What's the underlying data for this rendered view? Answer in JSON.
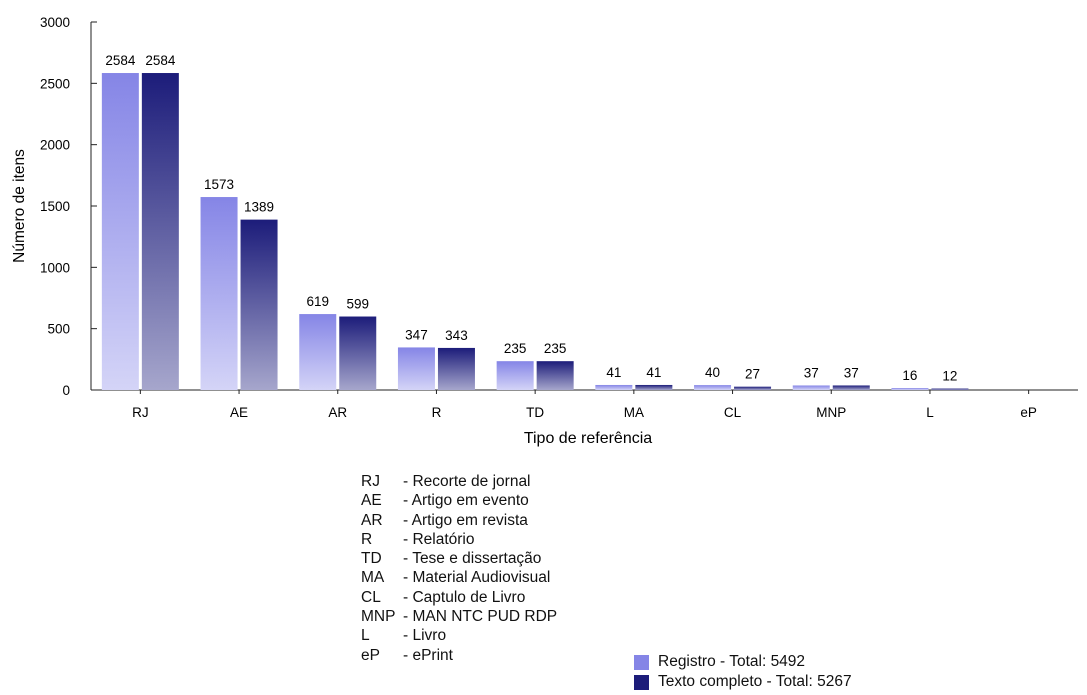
{
  "chart_data": {
    "type": "bar",
    "xlabel": "Tipo de referência",
    "ylabel": "Número de itens",
    "ylim": [
      0,
      3000
    ],
    "yticks": [
      0,
      500,
      1000,
      1500,
      2000,
      2500,
      3000
    ],
    "categories": [
      "RJ",
      "AE",
      "AR",
      "R",
      "TD",
      "MA",
      "CL",
      "MNP",
      "L",
      "eP"
    ],
    "series": [
      {
        "name": "Registro - Total: 5492",
        "color": "#8585e6",
        "values": [
          2584,
          1573,
          619,
          347,
          235,
          41,
          40,
          37,
          16,
          null
        ],
        "labels": [
          "2584",
          "1573",
          "619",
          "347",
          "235",
          "41",
          "40",
          "37",
          "16",
          ""
        ]
      },
      {
        "name": "Texto completo - Total: 5267",
        "color": "#1c1c7a",
        "values": [
          2584,
          1389,
          599,
          343,
          235,
          41,
          27,
          37,
          12,
          null
        ],
        "labels": [
          "2584",
          "1389",
          "599",
          "343",
          "235",
          "41",
          "27",
          "37",
          "12",
          ""
        ]
      }
    ],
    "legend_position": "bottom-right",
    "grid": false
  },
  "abbreviations": [
    {
      "code": "RJ",
      "desc": "- Recorte de jornal"
    },
    {
      "code": "AE",
      "desc": "- Artigo em evento"
    },
    {
      "code": "AR",
      "desc": "- Artigo em revista"
    },
    {
      "code": "R",
      "desc": "- Relatório"
    },
    {
      "code": "TD",
      "desc": "- Tese e dissertação"
    },
    {
      "code": "MA",
      "desc": "- Material Audiovisual"
    },
    {
      "code": "CL",
      "desc": "- Captulo de Livro"
    },
    {
      "code": "MNP",
      "desc": "- MAN NTC PUD RDP"
    },
    {
      "code": "L",
      "desc": "- Livro"
    },
    {
      "code": "eP",
      "desc": "- ePrint"
    }
  ]
}
